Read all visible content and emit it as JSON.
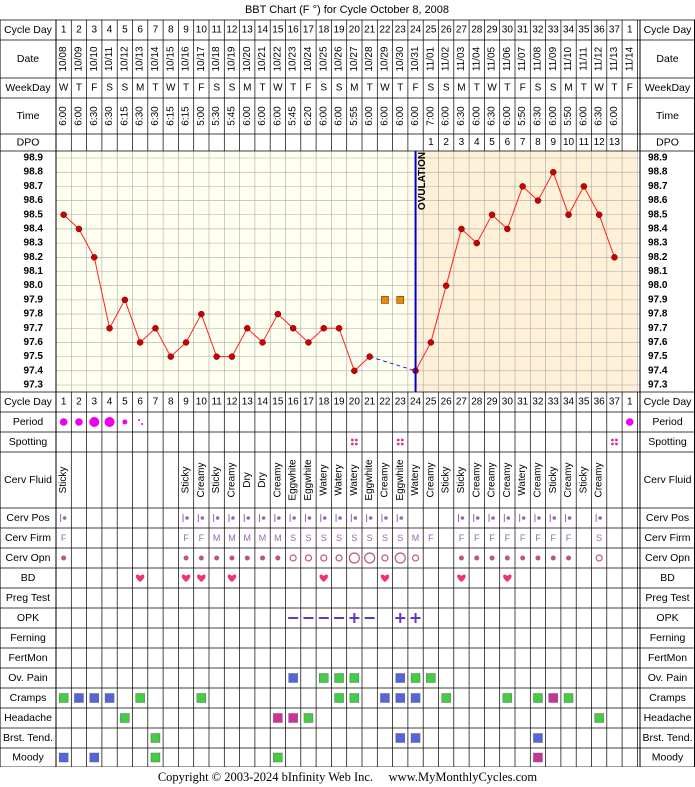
{
  "title": "BBT Chart (F °) for Cycle October 8, 2008",
  "footer": "Copyright © 2003-2024 bInfinity Web Inc.     www.MyMonthlyCycles.com",
  "ovulation_label": "OVULATION",
  "row_labels": {
    "cycle_day": "Cycle Day",
    "date": "Date",
    "weekday": "WeekDay",
    "time": "Time",
    "dpo": "DPO",
    "period": "Period",
    "spotting": "Spotting",
    "cerv_fluid": "Cerv Fluid",
    "cerv_pos": "Cerv Pos",
    "cerv_firm": "Cerv Firm",
    "cerv_opn": "Cerv Opn",
    "bd": "BD",
    "preg_test": "Preg Test",
    "opk": "OPK",
    "ferning": "Ferning",
    "fertmon": "FertMon",
    "ov_pain": "Ov. Pain",
    "cramps": "Cramps",
    "headache": "Headache",
    "brst_tend": "Brst. Tend.",
    "moody": "Moody"
  },
  "colors": {
    "grid": "#000000",
    "chart_bg_pre": "#fffff0",
    "chart_bg_post": "#fff0d8",
    "line": "#ff2020",
    "point": "#cc0000",
    "ovulation": "#0000cc",
    "period": "#ee00ee",
    "green": "#44cc44",
    "blue": "#5566dd",
    "magenta": "#cc3399",
    "heart": "#ee3377",
    "orange": "#ee8800"
  },
  "cycle_days": [
    "1",
    "2",
    "3",
    "4",
    "5",
    "6",
    "7",
    "8",
    "9",
    "10",
    "11",
    "12",
    "13",
    "14",
    "15",
    "16",
    "17",
    "18",
    "19",
    "20",
    "21",
    "22",
    "23",
    "24",
    "25",
    "26",
    "27",
    "28",
    "29",
    "30",
    "31",
    "32",
    "33",
    "34",
    "35",
    "36",
    "37",
    "1"
  ],
  "dates": [
    "10/08",
    "10/09",
    "10/10",
    "10/11",
    "10/12",
    "10/13",
    "10/14",
    "10/15",
    "10/16",
    "10/17",
    "10/18",
    "10/19",
    "10/20",
    "10/21",
    "10/22",
    "10/23",
    "10/24",
    "10/25",
    "10/26",
    "10/27",
    "10/28",
    "10/29",
    "10/30",
    "10/31",
    "11/01",
    "11/02",
    "11/03",
    "11/04",
    "11/05",
    "11/06",
    "11/07",
    "11/08",
    "11/09",
    "11/10",
    "11/11",
    "11/12",
    "11/13",
    "11/14"
  ],
  "weekdays": [
    "W",
    "T",
    "F",
    "S",
    "S",
    "M",
    "T",
    "W",
    "T",
    "F",
    "S",
    "S",
    "M",
    "T",
    "W",
    "T",
    "F",
    "S",
    "S",
    "M",
    "T",
    "W",
    "T",
    "F",
    "S",
    "S",
    "M",
    "T",
    "W",
    "T",
    "F",
    "S",
    "S",
    "M",
    "T",
    "W",
    "T",
    "F"
  ],
  "times": [
    "6:00",
    "6:00",
    "6:30",
    "6:30",
    "6:15",
    "6:30",
    "6:30",
    "6:15",
    "6:15",
    "5:00",
    "5:30",
    "5:45",
    "6:00",
    "6:00",
    "6:00",
    "5:45",
    "6:20",
    "6:00",
    "6:00",
    "5:55",
    "6:00",
    "6:00",
    "6:00",
    "6:00",
    "7:00",
    "6:00",
    "6:30",
    "6:00",
    "6:30",
    "6:00",
    "5:50",
    "6:30",
    "6:00",
    "5:50",
    "6:00",
    "6:30",
    "6:00",
    ""
  ],
  "dpo": [
    "",
    "",
    "",
    "",
    "",
    "",
    "",
    "",
    "",
    "",
    "",
    "",
    "",
    "",
    "",
    "",
    "",
    "",
    "",
    "",
    "",
    "",
    "",
    "",
    "1",
    "2",
    "3",
    "4",
    "5",
    "6",
    "7",
    "8",
    "9",
    "10",
    "11",
    "12",
    "13",
    ""
  ],
  "cerv_fluid": [
    "Sticky",
    "",
    "",
    "",
    "",
    "",
    "",
    "",
    "Sticky",
    "Creamy",
    "Sticky",
    "Creamy",
    "Dry",
    "Dry",
    "Creamy",
    "Eggwhite",
    "Eggwhite",
    "Watery",
    "Watery",
    "Watery",
    "Eggwhite",
    "Creamy",
    "Eggwhite",
    "Watery",
    "Creamy",
    "Sticky",
    "Sticky",
    "Creamy",
    "Creamy",
    "Creamy",
    "Watery",
    "Creamy",
    "Sticky",
    "Creamy",
    "Sticky",
    "Creamy",
    "",
    ""
  ],
  "cerv_firm": [
    "F",
    "",
    "",
    "",
    "",
    "",
    "",
    "",
    "F",
    "F",
    "M",
    "M",
    "M",
    "M",
    "M",
    "S",
    "S",
    "S",
    "S",
    "S",
    "S",
    "S",
    "S",
    "M",
    "F",
    "",
    "F",
    "F",
    "F",
    "F",
    "F",
    "F",
    "F",
    "F",
    "",
    "S",
    "",
    ""
  ],
  "chart_data": {
    "type": "line",
    "title": "BBT Chart (F °) for Cycle October 8, 2008",
    "x": [
      1,
      2,
      3,
      4,
      5,
      6,
      7,
      8,
      9,
      10,
      11,
      12,
      13,
      14,
      15,
      16,
      17,
      18,
      19,
      20,
      21,
      22,
      23,
      24,
      25,
      26,
      27,
      28,
      29,
      30,
      31,
      32,
      33,
      34,
      35,
      36,
      37,
      38
    ],
    "y_ticks": [
      "98.9",
      "98.8",
      "98.7",
      "98.6",
      "98.5",
      "98.4",
      "98.3",
      "98.2",
      "98.1",
      "98.0",
      "97.9",
      "97.8",
      "97.7",
      "97.6",
      "97.5",
      "97.4",
      "97.3"
    ],
    "ylim": [
      97.3,
      98.9
    ],
    "temps": [
      98.5,
      98.4,
      98.2,
      97.7,
      97.9,
      97.6,
      97.7,
      97.5,
      97.6,
      97.8,
      97.5,
      97.5,
      97.7,
      97.6,
      97.8,
      97.7,
      97.6,
      97.7,
      97.7,
      97.4,
      97.5,
      null,
      null,
      97.4,
      97.6,
      98.0,
      98.4,
      98.3,
      98.5,
      98.4,
      98.7,
      98.6,
      98.8,
      98.5,
      98.7,
      98.5,
      98.2,
      null
    ],
    "discarded_temps": [
      {
        "day": 22,
        "value": 97.9
      },
      {
        "day": 23,
        "value": 97.9
      }
    ],
    "ovulation_day": 24,
    "grid": true
  },
  "period": [
    3,
    3,
    4,
    4,
    2,
    1,
    0,
    0,
    0,
    0,
    0,
    0,
    0,
    0,
    0,
    0,
    0,
    0,
    0,
    0,
    0,
    0,
    0,
    0,
    0,
    0,
    0,
    0,
    0,
    0,
    0,
    0,
    0,
    0,
    0,
    0,
    0,
    3
  ],
  "spotting_days": [
    20,
    23,
    37
  ],
  "cerv_pos": [
    1,
    0,
    0,
    0,
    0,
    0,
    0,
    0,
    1,
    1,
    1,
    1,
    1,
    1,
    1,
    1,
    1,
    1,
    1,
    1,
    1,
    1,
    1,
    0,
    0,
    0,
    1,
    1,
    1,
    1,
    1,
    1,
    1,
    1,
    0,
    1,
    0,
    0
  ],
  "cerv_opn": [
    1,
    0,
    0,
    0,
    0,
    0,
    0,
    0,
    1,
    1,
    1,
    1,
    1,
    1,
    1,
    2,
    2,
    2,
    2,
    3,
    3,
    2,
    3,
    2,
    0,
    0,
    1,
    1,
    1,
    1,
    1,
    1,
    1,
    1,
    0,
    2,
    0,
    0
  ],
  "bd_days": [
    6,
    9,
    10,
    12,
    18,
    22,
    27,
    30
  ],
  "opk": [
    "",
    "",
    "",
    "",
    "",
    "",
    "",
    "",
    "",
    "",
    "",
    "",
    "",
    "",
    "",
    "-",
    "-",
    "-",
    "-",
    "+",
    "-",
    "",
    "+",
    "+",
    "",
    "",
    "",
    "",
    "",
    "",
    "",
    "",
    "",
    "",
    "",
    "",
    "",
    ""
  ],
  "symptoms": {
    "ov_pain": [
      {
        "day": 16,
        "c": "blue"
      },
      {
        "day": 18,
        "c": "green"
      },
      {
        "day": 19,
        "c": "green"
      },
      {
        "day": 20,
        "c": "green"
      },
      {
        "day": 23,
        "c": "blue"
      },
      {
        "day": 24,
        "c": "green"
      },
      {
        "day": 25,
        "c": "green"
      }
    ],
    "cramps": [
      {
        "day": 1,
        "c": "green"
      },
      {
        "day": 2,
        "c": "blue"
      },
      {
        "day": 3,
        "c": "blue"
      },
      {
        "day": 4,
        "c": "blue"
      },
      {
        "day": 6,
        "c": "green"
      },
      {
        "day": 10,
        "c": "green"
      },
      {
        "day": 19,
        "c": "green"
      },
      {
        "day": 20,
        "c": "green"
      },
      {
        "day": 22,
        "c": "blue"
      },
      {
        "day": 23,
        "c": "blue"
      },
      {
        "day": 24,
        "c": "blue"
      },
      {
        "day": 26,
        "c": "green"
      },
      {
        "day": 30,
        "c": "green"
      },
      {
        "day": 32,
        "c": "green"
      },
      {
        "day": 33,
        "c": "magenta"
      },
      {
        "day": 34,
        "c": "green"
      }
    ],
    "headache": [
      {
        "day": 5,
        "c": "green"
      },
      {
        "day": 15,
        "c": "magenta"
      },
      {
        "day": 16,
        "c": "magenta"
      },
      {
        "day": 17,
        "c": "green"
      },
      {
        "day": 36,
        "c": "green"
      }
    ],
    "brst_tend": [
      {
        "day": 7,
        "c": "green"
      },
      {
        "day": 23,
        "c": "blue"
      },
      {
        "day": 24,
        "c": "blue"
      },
      {
        "day": 32,
        "c": "blue"
      }
    ],
    "moody": [
      {
        "day": 1,
        "c": "blue"
      },
      {
        "day": 3,
        "c": "blue"
      },
      {
        "day": 7,
        "c": "green"
      },
      {
        "day": 15,
        "c": "green"
      },
      {
        "day": 32,
        "c": "magenta"
      }
    ]
  }
}
